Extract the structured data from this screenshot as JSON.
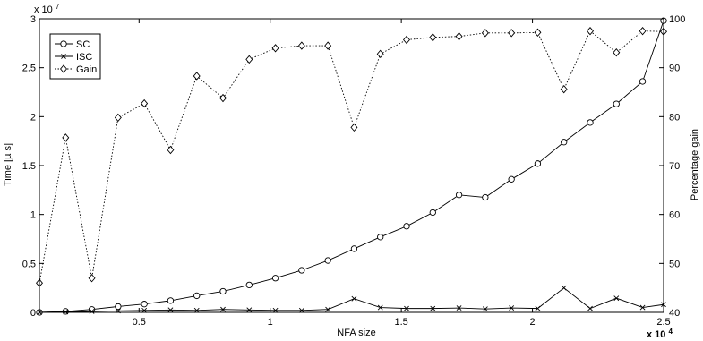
{
  "chart_data": {
    "type": "line",
    "xlabel": "NFA size",
    "x_multiplier_label": "x 10",
    "x_multiplier_exp": "4",
    "y_left_label": "Time [µ s]",
    "y_left_multiplier_label": "x 10",
    "y_left_multiplier_exp": "7",
    "y_right_label": "Percentage gain",
    "xlim": [
      1200,
      25000
    ],
    "ylim_left": [
      0,
      30000000
    ],
    "ylim_right": [
      40,
      100
    ],
    "x_ticks": [
      5000,
      10000,
      15000,
      20000,
      25000
    ],
    "x_tick_labels": [
      "0.5",
      "1",
      "1.5",
      "2",
      "2.5"
    ],
    "y_left_ticks": [
      0,
      5000000,
      10000000,
      15000000,
      20000000,
      25000000,
      30000000
    ],
    "y_left_tick_labels": [
      "0",
      "0.5",
      "1",
      "1.5",
      "2",
      "2.5",
      "3"
    ],
    "y_right_ticks": [
      40,
      50,
      60,
      70,
      80,
      90,
      100
    ],
    "y_right_tick_labels": [
      "40",
      "50",
      "60",
      "70",
      "80",
      "90",
      "100"
    ],
    "grid": false,
    "legend_position": "top-left",
    "x": [
      1200,
      2200,
      3200,
      4200,
      5200,
      6200,
      7200,
      8200,
      9200,
      10200,
      11200,
      12200,
      13200,
      14200,
      15200,
      16200,
      17200,
      18200,
      19200,
      20200,
      21200,
      22200,
      23200,
      24200,
      25000
    ],
    "series": [
      {
        "name": "SC",
        "axis": "left",
        "marker": "circle",
        "linestyle": "solid",
        "values": [
          0,
          100000,
          300000,
          600000,
          850000,
          1200000,
          1700000,
          2150000,
          2800000,
          3500000,
          4300000,
          5300000,
          6500000,
          7700000,
          8800000,
          10200000,
          12000000,
          11750000,
          13600000,
          15200000,
          17400000,
          19400000,
          21300000,
          23600000,
          29800000
        ]
      },
      {
        "name": "ISC",
        "axis": "left",
        "marker": "x",
        "linestyle": "solid",
        "values": [
          0,
          50000,
          100000,
          150000,
          200000,
          250000,
          200000,
          300000,
          250000,
          200000,
          200000,
          300000,
          1400000,
          500000,
          400000,
          400000,
          450000,
          350000,
          450000,
          400000,
          2500000,
          400000,
          1450000,
          500000,
          800000
        ]
      },
      {
        "name": "Gain",
        "axis": "right",
        "marker": "diamond",
        "linestyle": "dotted",
        "values": [
          46,
          75.7,
          47,
          79.8,
          82.7,
          73.2,
          88.3,
          83.8,
          91.7,
          94,
          94.5,
          94.5,
          77.8,
          92.8,
          95.7,
          96.2,
          96.4,
          97.1,
          97.1,
          97.2,
          85.6,
          97.5,
          93.1,
          97.5,
          97.4
        ]
      }
    ]
  }
}
